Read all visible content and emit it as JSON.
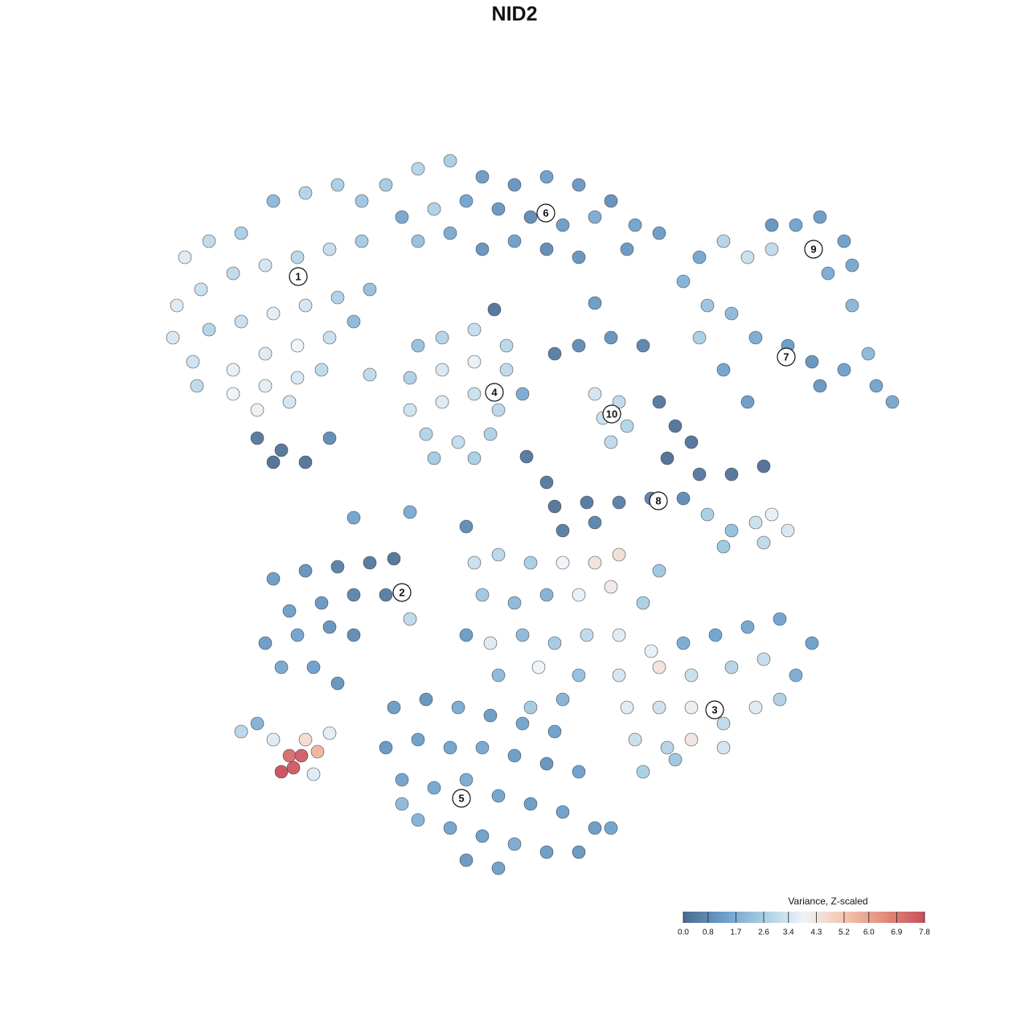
{
  "chart_data": {
    "type": "scatter",
    "title": "NID2",
    "xlim": [
      0,
      128
    ],
    "ylim": [
      128,
      0
    ],
    "x": [
      23,
      26,
      30,
      34,
      38,
      42,
      45,
      22,
      25,
      29,
      33,
      37,
      41,
      45,
      21.5,
      26,
      30,
      34,
      38,
      42,
      46,
      24,
      29,
      33,
      37,
      41,
      44,
      29,
      33,
      37,
      40,
      32,
      36,
      24.5,
      32,
      35,
      38,
      41,
      34,
      48,
      52,
      56,
      60,
      64,
      68,
      72,
      76,
      50,
      54,
      58,
      62,
      66,
      70,
      74,
      79,
      82,
      52,
      56,
      60,
      64,
      68,
      72,
      78,
      87,
      90,
      93,
      96,
      99,
      102,
      105,
      106,
      103,
      96,
      106,
      85,
      88,
      91,
      94,
      98,
      101,
      105,
      109,
      111,
      102,
      87,
      90,
      93,
      108,
      52,
      55,
      59,
      63,
      51,
      55,
      59,
      63,
      65,
      51,
      55,
      59,
      62,
      53,
      57,
      61,
      54,
      59,
      74,
      77,
      75,
      78,
      76,
      69,
      72,
      76,
      80,
      82,
      84,
      86,
      83,
      87,
      91,
      95,
      69,
      73,
      77,
      81,
      85,
      70,
      74,
      68,
      88,
      91,
      94,
      96,
      98,
      90,
      95,
      34,
      38,
      42,
      46,
      49,
      36,
      40,
      44,
      48,
      33,
      37,
      41,
      44,
      35,
      39,
      42,
      51,
      59,
      62,
      66,
      70,
      74,
      77,
      82,
      60,
      64,
      68,
      72,
      76,
      80,
      58,
      61,
      65,
      69,
      73,
      77,
      81,
      85,
      89,
      93,
      97,
      101,
      62,
      67,
      72,
      77,
      82,
      86,
      91,
      95,
      99,
      66,
      70,
      78,
      82,
      86,
      90,
      94,
      97,
      79,
      83,
      86,
      90,
      80,
      84,
      49,
      53,
      57,
      61,
      65,
      69,
      48,
      52,
      56,
      60,
      64,
      68,
      72,
      50,
      54,
      58,
      62,
      66,
      70,
      74,
      52,
      56,
      60,
      64,
      68,
      58,
      62,
      72,
      76,
      50,
      30,
      32,
      34,
      38,
      35,
      36.5,
      36,
      37.5,
      39.5,
      41,
      39,
      44,
      51,
      58,
      65.5,
      61.5,
      74,
      46
    ],
    "y": [
      32,
      30,
      29,
      25,
      24,
      23,
      25,
      38,
      36,
      34,
      33,
      32,
      31,
      30,
      42,
      41,
      40,
      39,
      38,
      37,
      36,
      45,
      46,
      44,
      43,
      42,
      40,
      49,
      48,
      47,
      46,
      51,
      50,
      48,
      54.5,
      56,
      57.5,
      54.5,
      57.5,
      23,
      21,
      20,
      22,
      23,
      22,
      23,
      25,
      27,
      26,
      25,
      26,
      27,
      28,
      27,
      28,
      29,
      30,
      29,
      31,
      30,
      31,
      32,
      31,
      32,
      30,
      32,
      31,
      28,
      27,
      30,
      33,
      34,
      28,
      38,
      35,
      38,
      39,
      42,
      43,
      45,
      46,
      48,
      50,
      48,
      42,
      46,
      50,
      44,
      43,
      42,
      41,
      43,
      47,
      46,
      45,
      46,
      49,
      51,
      50,
      49,
      51,
      54,
      55,
      54,
      57,
      57,
      49,
      50,
      52,
      53,
      55,
      44,
      43,
      42,
      43,
      50,
      53,
      55,
      57,
      59,
      59,
      58,
      63,
      62.5,
      62.5,
      62,
      62,
      66,
      65,
      60,
      64,
      66,
      65,
      64,
      66,
      68,
      67.5,
      72,
      71,
      70.5,
      70,
      69.5,
      76,
      75,
      74,
      74,
      80,
      79,
      78,
      79,
      83,
      83,
      85,
      77,
      70,
      69,
      70,
      70,
      70,
      69,
      71,
      74,
      75,
      74,
      74,
      73,
      75,
      79,
      80,
      79,
      80,
      79,
      79,
      81,
      80,
      79,
      78,
      77,
      80,
      84,
      83,
      84,
      84,
      83,
      84,
      83,
      82,
      84,
      88,
      87,
      88,
      88,
      88,
      90,
      88,
      87,
      92,
      93,
      92,
      93,
      96,
      94.5,
      88,
      87,
      88,
      89,
      90,
      91,
      93,
      92,
      93,
      93,
      94,
      95,
      96,
      97,
      98,
      97,
      99,
      100,
      101,
      103,
      102,
      103,
      104,
      105,
      106,
      107,
      108,
      106,
      103,
      100,
      91,
      90,
      92,
      92,
      96,
      95.5,
      94,
      94,
      93.5,
      91.2,
      96.3,
      64.4,
      63.7,
      65.5,
      56.8,
      38.5,
      37.7,
      46.6
    ],
    "values": [
      3.6,
      3.0,
      2.6,
      2.0,
      2.8,
      2.6,
      2.4,
      3.6,
      3.2,
      3.0,
      3.4,
      2.9,
      3.1,
      2.5,
      3.5,
      2.8,
      3.2,
      3.7,
      3.4,
      2.7,
      2.2,
      3.3,
      3.8,
      3.6,
      3.9,
      3.2,
      2.0,
      3.9,
      3.7,
      3.5,
      3.0,
      4.0,
      3.4,
      3.0,
      0.3,
      0.2,
      0.2,
      0.8,
      0.1,
      2.5,
      2.8,
      2.6,
      1.2,
      1.0,
      1.3,
      1.1,
      0.9,
      1.5,
      2.7,
      1.4,
      1.1,
      0.8,
      1.2,
      1.6,
      1.4,
      1.2,
      2.2,
      1.6,
      1.0,
      1.3,
      0.8,
      1.0,
      1.1,
      1.5,
      2.8,
      3.2,
      3.0,
      1.4,
      1.2,
      1.3,
      1.5,
      1.6,
      1.0,
      1.9,
      1.8,
      2.3,
      2.0,
      1.6,
      1.2,
      1.0,
      1.3,
      1.4,
      1.5,
      1.1,
      2.6,
      1.4,
      1.2,
      2.0,
      2.2,
      2.8,
      3.1,
      2.9,
      2.7,
      3.5,
      3.8,
      3.0,
      1.6,
      3.3,
      3.6,
      3.2,
      2.9,
      2.8,
      3.1,
      2.7,
      2.5,
      2.6,
      3.4,
      3.0,
      3.2,
      2.8,
      3.0,
      0.4,
      0.8,
      1.0,
      0.6,
      0.3,
      0.2,
      0.2,
      0.1,
      0.3,
      0.2,
      0.1,
      0.2,
      0.3,
      0.5,
      0.6,
      0.8,
      0.4,
      0.6,
      0.3,
      2.6,
      2.2,
      3.2,
      3.8,
      3.5,
      2.4,
      3.0,
      1.2,
      1.0,
      0.5,
      0.3,
      0.2,
      1.3,
      1.1,
      0.6,
      0.4,
      1.2,
      1.4,
      1.0,
      0.8,
      1.5,
      1.3,
      1.0,
      3.0,
      3.2,
      2.9,
      2.6,
      3.9,
      4.4,
      4.5,
      2.4,
      2.4,
      2.0,
      1.8,
      3.8,
      4.2,
      2.6,
      1.2,
      3.6,
      2.0,
      2.5,
      3.0,
      3.6,
      3.8,
      1.6,
      1.4,
      1.5,
      1.4,
      1.3,
      2.0,
      3.9,
      2.2,
      3.4,
      4.4,
      3.2,
      2.8,
      3.1,
      1.6,
      2.5,
      1.8,
      3.6,
      3.3,
      4.1,
      3.0,
      3.6,
      2.7,
      3.2,
      2.8,
      4.3,
      3.4,
      2.6,
      2.4,
      1.2,
      1.0,
      1.6,
      1.2,
      1.4,
      1.3,
      1.1,
      1.3,
      1.4,
      1.5,
      1.2,
      1.0,
      1.3,
      1.4,
      1.5,
      1.6,
      1.4,
      1.2,
      1.3,
      1.2,
      1.8,
      1.4,
      1.3,
      1.6,
      1.2,
      1.1,
      1.3,
      1.1,
      1.4,
      2.0,
      2.9,
      1.8,
      3.6,
      4.6,
      7.8,
      7.6,
      7.2,
      7.5,
      5.6,
      3.7,
      3.6,
      1.4,
      1.6,
      0.8,
      0.3,
      0.2,
      1.2,
      3.0
    ],
    "colorbar": {
      "title": "Variance, Z-scaled",
      "clim": [
        0,
        7.8
      ],
      "colors": [
        "#4b6a8f",
        "#6a9ecb",
        "#a8cde4",
        "#eef3f8",
        "#f5c5ae",
        "#e38c7c",
        "#c94f5e"
      ],
      "ticks": [
        {
          "value": 0,
          "label": "0.0"
        },
        0.8,
        1.7,
        2.6,
        3.4,
        4.3,
        5.2,
        {
          "value": 6,
          "label": "6.0"
        },
        6.9,
        7.8
      ]
    },
    "annotations": [
      {
        "text": "1",
        "x": 37.1,
        "y": 34.4
      },
      {
        "text": "2",
        "x": 50.0,
        "y": 73.7
      },
      {
        "text": "3",
        "x": 88.9,
        "y": 88.3
      },
      {
        "text": "4",
        "x": 61.5,
        "y": 48.8
      },
      {
        "text": "5",
        "x": 57.4,
        "y": 99.3
      },
      {
        "text": "6",
        "x": 67.9,
        "y": 26.5
      },
      {
        "text": "7",
        "x": 97.8,
        "y": 44.4
      },
      {
        "text": "8",
        "x": 81.9,
        "y": 62.3
      },
      {
        "text": "9",
        "x": 101.2,
        "y": 31.0
      },
      {
        "text": "10",
        "x": 76.1,
        "y": 51.5
      }
    ]
  }
}
